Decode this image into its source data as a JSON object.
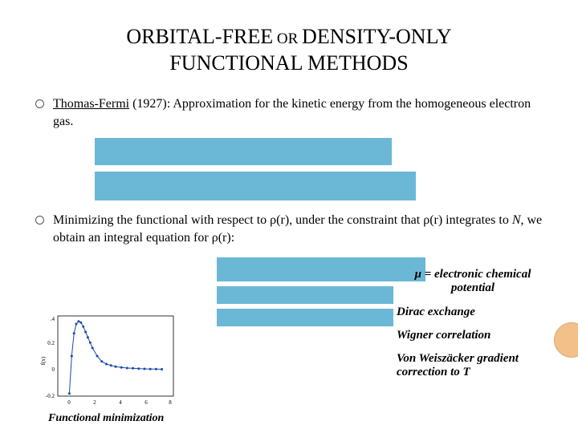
{
  "title_parts": {
    "p1": "ORBITAL-FREE",
    "or": " OR ",
    "p2": "DENSITY-ONLY",
    "p3": "FUNCTIONAL METHODS"
  },
  "bullet1": {
    "lead": "Thomas-Fermi",
    "rest": " (1927): Approximation for the kinetic energy from the homogeneous electron gas."
  },
  "bullet2": {
    "text_a": "Minimizing the functional with respect to ",
    "rho_r": "ρ(r)",
    "text_b": ", under the constraint that ",
    "text_c": " integrates to ",
    "N": "N",
    "text_d": ", we obtain an integral equation for ",
    "text_e": ":"
  },
  "annotations": {
    "mu": "μ = electronic chemical potential",
    "dirac": "Dirac exchange",
    "wigner": "Wigner correlation",
    "weiz": "Von Weiszäcker gradient correction to T"
  },
  "chart": {
    "type": "line+scatter",
    "xlim": [
      -1,
      9
    ],
    "ylim": [
      -0.2,
      0.4
    ],
    "ytick_labels": [
      "-0.2",
      "0",
      "0.2",
      ".4"
    ],
    "xtick_labels": [
      "0",
      "2",
      "4",
      "6",
      "8"
    ],
    "line_color": "#1a4aa8",
    "marker_color": "#1a4aa8",
    "marker": "circle",
    "marker_size": 3,
    "line_width": 1,
    "background_color": "#ffffff",
    "border_color": "#000000",
    "x": [
      0.0,
      0.2,
      0.4,
      0.6,
      0.8,
      1.0,
      1.2,
      1.4,
      1.6,
      1.8,
      2.0,
      2.4,
      2.8,
      3.2,
      3.6,
      4.0,
      4.5,
      5.0,
      5.5,
      6.0,
      6.5,
      7.0,
      7.5,
      8.0
    ],
    "y": [
      -0.18,
      0.1,
      0.27,
      0.34,
      0.36,
      0.35,
      0.32,
      0.28,
      0.24,
      0.2,
      0.16,
      0.1,
      0.06,
      0.04,
      0.03,
      0.02,
      0.015,
      0.01,
      0.008,
      0.006,
      0.004,
      0.003,
      0.002,
      0.001
    ],
    "caption": "Functional minimization"
  },
  "eq_blocks": {
    "color": "#6bb8d6"
  },
  "deco_circle": {
    "fill": "#f4c08a",
    "border": "#d9a76b"
  }
}
